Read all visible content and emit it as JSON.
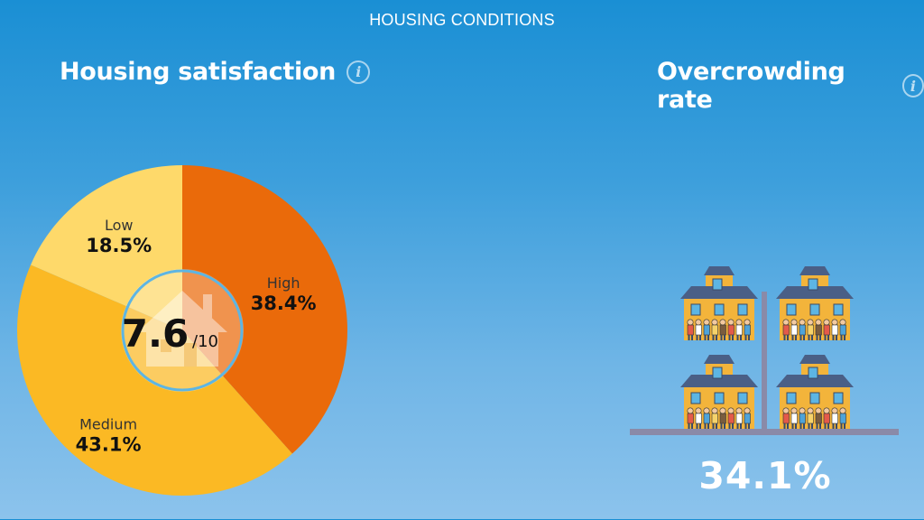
{
  "header": {
    "section_title": "HOUSING CONDITIONS"
  },
  "satisfaction": {
    "title": "Housing satisfaction",
    "info_icon": "info-icon",
    "score": "7.6",
    "score_suffix": "/10"
  },
  "overcrowding": {
    "title": "Overcrowding rate",
    "info_icon": "info-icon",
    "value": "34.1%",
    "illustration_icon": "crowded-houses-icon"
  },
  "colors": {
    "high": "#ea6a0a",
    "medium": "#fbb924",
    "low": "#fed96a",
    "ring": "#5db5e3"
  },
  "chart_data": {
    "type": "pie",
    "title": "Housing satisfaction",
    "slices": [
      {
        "label": "High",
        "value": 38.4,
        "display": "38.4%"
      },
      {
        "label": "Medium",
        "value": 43.1,
        "display": "43.1%"
      },
      {
        "label": "Low",
        "value": 18.5,
        "display": "18.5%"
      }
    ]
  }
}
